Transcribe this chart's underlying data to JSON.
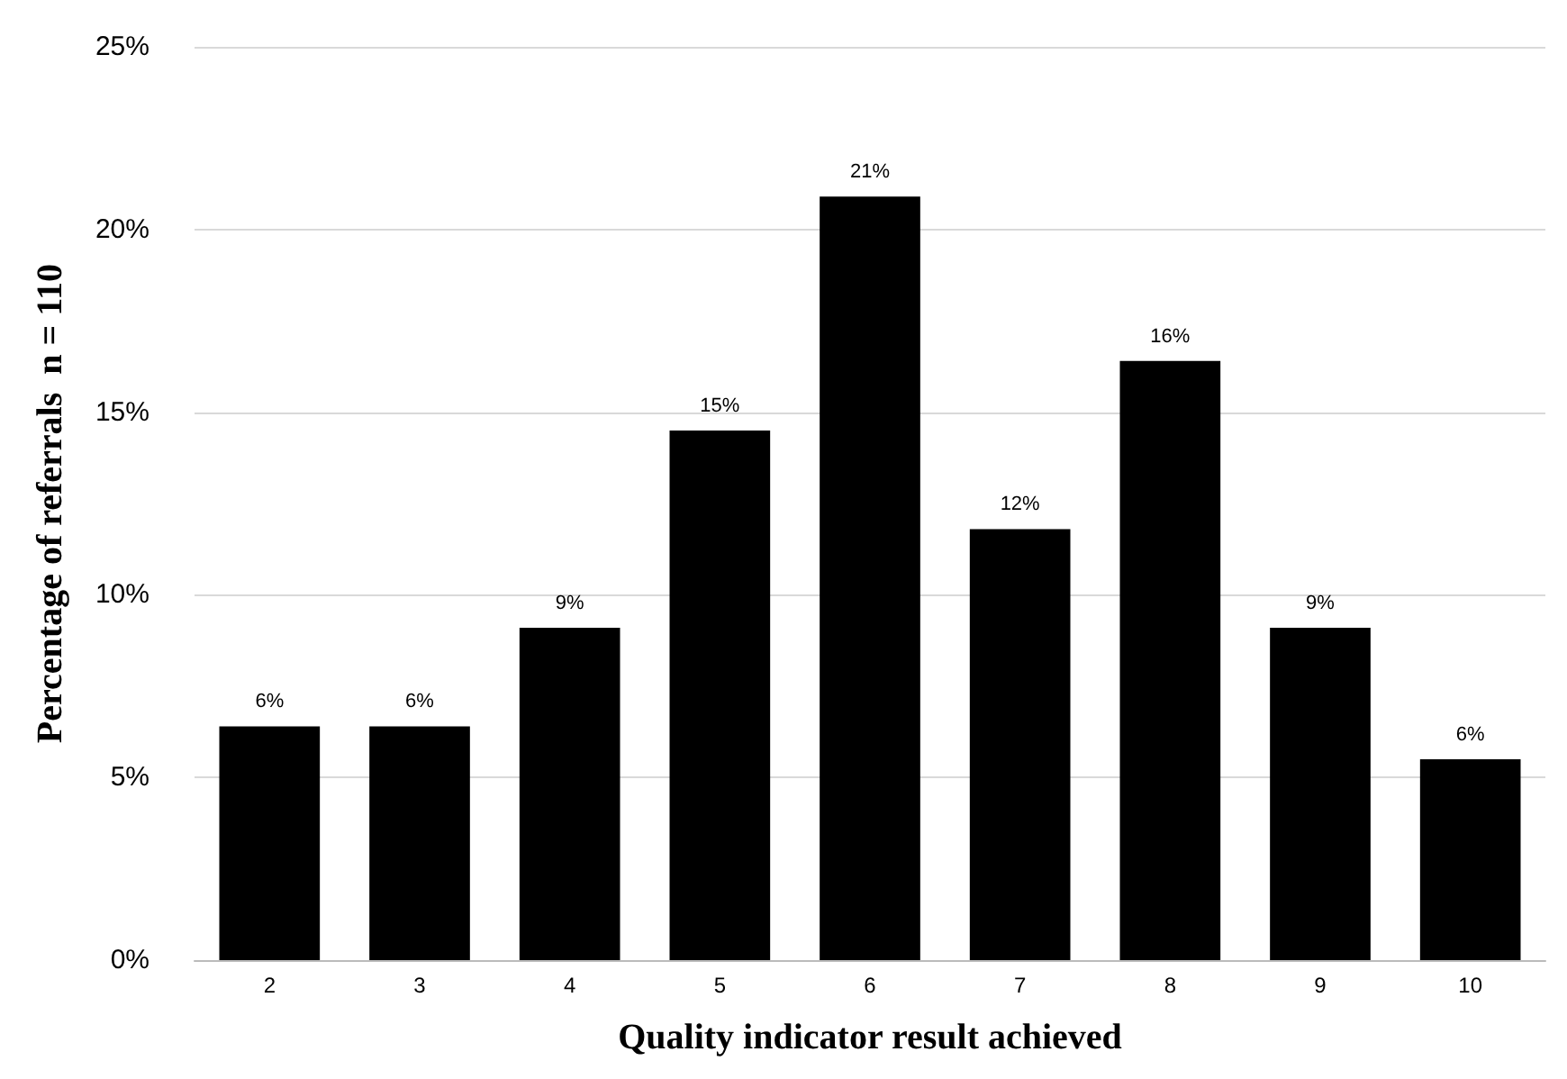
{
  "chart_data": {
    "type": "bar",
    "xlabel": "Quality indicator result achieved",
    "ylabel": "Percentage of referrals  n = 110",
    "categories": [
      "2",
      "3",
      "4",
      "5",
      "6",
      "7",
      "8",
      "9",
      "10"
    ],
    "values": [
      6.4,
      6.4,
      9.1,
      14.5,
      20.9,
      11.8,
      16.4,
      9.1,
      5.5
    ],
    "value_labels": [
      "6%",
      "6%",
      "9%",
      "15%",
      "21%",
      "12%",
      "16%",
      "9%",
      "6%"
    ],
    "color": "#000000",
    "ylim": [
      0,
      25
    ],
    "yticks": [
      {
        "value": 0,
        "label": "0%"
      },
      {
        "value": 5,
        "label": "5%"
      },
      {
        "value": 10,
        "label": "10%"
      },
      {
        "value": 15,
        "label": "15%"
      },
      {
        "value": 20,
        "label": "20%"
      },
      {
        "value": 25,
        "label": "25%"
      }
    ],
    "grid": "y"
  }
}
